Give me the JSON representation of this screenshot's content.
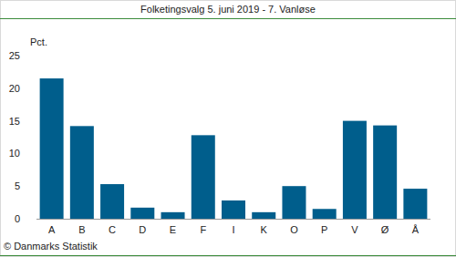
{
  "chart_data": {
    "type": "bar",
    "title": "Folketingsvalg 5. juni 2019 - 7. Vanløse",
    "y_label": "Pct.",
    "source": "© Danmarks Statistik",
    "categories": [
      "A",
      "B",
      "C",
      "D",
      "E",
      "F",
      "I",
      "K",
      "O",
      "P",
      "V",
      "Ø",
      "Å"
    ],
    "values": [
      21.5,
      14.2,
      5.3,
      1.7,
      1.0,
      12.8,
      2.8,
      1.0,
      5.0,
      1.5,
      15.0,
      14.3,
      4.6
    ],
    "color": "#005e8c",
    "ylim": [
      0,
      25
    ],
    "yticks": [
      0,
      5,
      10,
      15,
      20,
      25
    ],
    "grid": false
  }
}
